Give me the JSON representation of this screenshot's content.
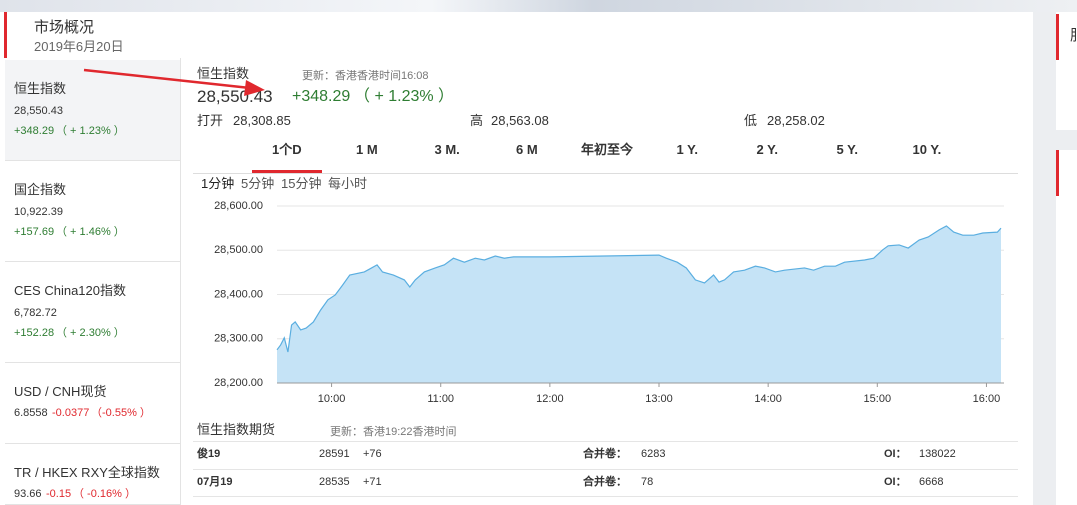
{
  "header": {
    "title": "市场概况",
    "date": "2019年6月20日"
  },
  "sidebar": [
    {
      "name": "恒生指数",
      "value": "28,550.43",
      "change": "+348.29",
      "percent": "（ + 1.23% ）",
      "color": "#2e7d32"
    },
    {
      "name": "国企指数",
      "value": "10,922.39",
      "change": "+157.69",
      "percent": "（ + 1.46% ）",
      "color": "#2e7d32"
    },
    {
      "name": "CES China120指数",
      "value": "6,782.72",
      "change": "+152.28",
      "percent": "（ + 2.30% ）",
      "color": "#2e7d32"
    },
    {
      "name": "USD / CNH现货",
      "value": "6.8558",
      "change": "-0.0377",
      "percent": "（-0.55% ）",
      "color": "#e0282e"
    },
    {
      "name": "TR / HKEX RXY全球指数",
      "value": "93.66",
      "change": "-0.15",
      "percent": "（ -0.16% ）",
      "color": "#e0282e"
    }
  ],
  "main": {
    "title": "恒生指数",
    "updated": "更新：香港香港时间16:08",
    "price": "28,550.43",
    "change": "+348.29",
    "percent": "（ + 1.23% ）",
    "color": "#2e7d32",
    "open_label": "打开",
    "open": "28,308.85",
    "high_label": "高",
    "high": "28,563.08",
    "low_label": "低",
    "low": "28,258.02"
  },
  "tabs": [
    "1个D",
    "1 M",
    "3 M.",
    "6 M",
    "年初至今",
    "1 Y.",
    "2 Y.",
    "5 Y.",
    "10 Y."
  ],
  "active_tab": 0,
  "intervals": [
    "1分钟",
    "5分钟",
    "15分钟",
    "每小时"
  ],
  "active_interval": 0,
  "chart_data": {
    "type": "area",
    "color": "#c5e3f6",
    "line_color": "#5aaee0",
    "grid": true,
    "x": [
      570,
      572,
      574,
      576,
      578,
      580,
      583,
      586,
      590,
      594,
      598,
      602,
      606,
      610,
      618,
      622,
      625,
      628,
      634,
      640,
      643,
      646,
      651,
      657,
      662,
      667,
      673,
      679,
      684,
      690,
      695,
      700,
      720,
      780,
      784,
      790,
      795,
      800,
      805,
      810,
      813,
      816,
      821,
      827,
      833,
      838,
      844,
      849,
      860,
      865,
      871,
      877,
      882,
      893,
      898,
      903,
      906,
      912,
      917,
      923,
      928,
      934,
      938,
      942,
      947,
      953,
      958,
      966,
      968
    ],
    "values": [
      28275,
      28286,
      28302,
      28270,
      28331,
      28338,
      28320,
      28324,
      28338,
      28365,
      28388,
      28399,
      28421,
      28444,
      28451,
      28460,
      28467,
      28451,
      28444,
      28433,
      28417,
      28433,
      28451,
      28460,
      28467,
      28482,
      28473,
      28482,
      28478,
      28487,
      28482,
      28485,
      28485,
      28489,
      28482,
      28473,
      28460,
      28433,
      28426,
      28444,
      28428,
      28433,
      28451,
      28455,
      28464,
      28460,
      28451,
      28455,
      28460,
      28455,
      28464,
      28464,
      28473,
      28478,
      28482,
      28501,
      28510,
      28512,
      28505,
      28523,
      28530,
      28546,
      28555,
      28541,
      28534,
      28534,
      28539,
      28541,
      28550
    ],
    "xlim": [
      570,
      968
    ],
    "xticks": [
      {
        "value": 600,
        "label": "10:00"
      },
      {
        "value": 660,
        "label": "11:00"
      },
      {
        "value": 720,
        "label": "12:00"
      },
      {
        "value": 780,
        "label": "13:00"
      },
      {
        "value": 840,
        "label": "14:00"
      },
      {
        "value": 900,
        "label": "15:00"
      },
      {
        "value": 960,
        "label": "16:00"
      }
    ],
    "ylim": [
      28200,
      28600
    ],
    "yticks": [
      {
        "value": 28200,
        "label": "28,200.00"
      },
      {
        "value": 28300,
        "label": "28,300.00"
      },
      {
        "value": 28400,
        "label": "28,400.00"
      },
      {
        "value": 28500,
        "label": "28,500.00"
      },
      {
        "value": 28600,
        "label": "28,600.00"
      }
    ]
  },
  "futures": {
    "title": "恒生指数期货",
    "updated": "更新：香港19:22香港时间",
    "rows": [
      [
        "俊19",
        "28591",
        "+76",
        "合并卷：",
        "6283",
        "OI：",
        "138022"
      ],
      [
        "07月19",
        "28535",
        "+71",
        "合并卷：",
        "78",
        "OI：",
        "6668"
      ]
    ]
  },
  "right_panel": {
    "title": "服"
  }
}
